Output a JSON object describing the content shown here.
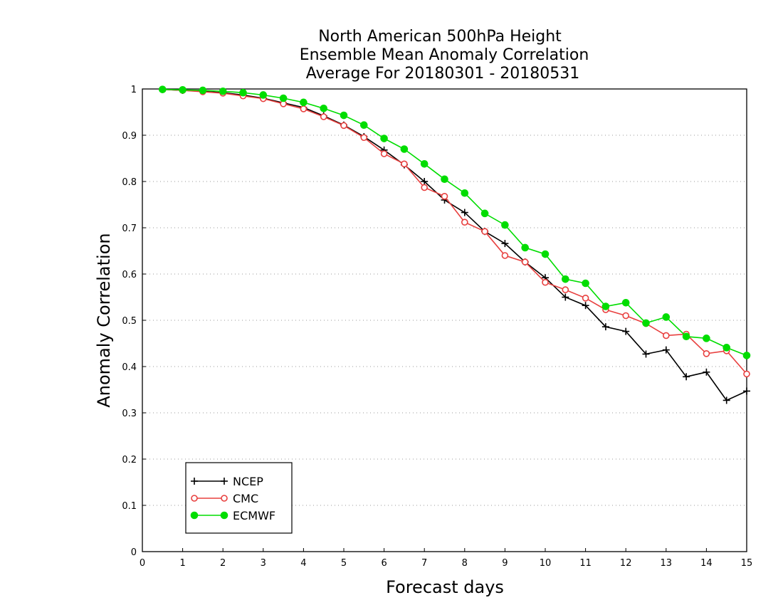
{
  "chart_data": {
    "type": "line",
    "title_lines": [
      "North American 500hPa Height",
      "Ensemble Mean Anomaly Correlation",
      "Average For 20180301 - 20180531"
    ],
    "xlabel": "Forecast days",
    "ylabel": "Anomaly Correlation",
    "xlim": [
      0,
      15
    ],
    "ylim": [
      0,
      1
    ],
    "x_ticks": [
      "0",
      "1",
      "2",
      "3",
      "4",
      "5",
      "6",
      "7",
      "8",
      "9",
      "10",
      "11",
      "12",
      "13",
      "14",
      "15"
    ],
    "y_ticks": [
      "0",
      "0.1",
      "0.2",
      "0.3",
      "0.4",
      "0.5",
      "0.6",
      "0.7",
      "0.8",
      "0.9",
      "1"
    ],
    "grid": "horizontal dotted",
    "legend_position": "bottom-left",
    "x": [
      0.5,
      1,
      1.5,
      2,
      2.5,
      3,
      3.5,
      4,
      4.5,
      5,
      5.5,
      6,
      6.5,
      7,
      7.5,
      8,
      8.5,
      9,
      9.5,
      10,
      10.5,
      11,
      11.5,
      12,
      12.5,
      13,
      13.5,
      14,
      14.5,
      15
    ],
    "series": [
      {
        "name": "NCEP",
        "color": "#000000",
        "marker": "plus",
        "values": [
          0.999,
          0.997,
          0.995,
          0.992,
          0.987,
          0.98,
          0.97,
          0.96,
          0.942,
          0.922,
          0.897,
          0.868,
          0.836,
          0.8,
          0.76,
          0.733,
          0.692,
          0.666,
          0.626,
          0.592,
          0.55,
          0.532,
          0.486,
          0.476,
          0.427,
          0.436,
          0.378,
          0.388,
          0.327,
          0.347
        ]
      },
      {
        "name": "CMC",
        "color": "#e8403f",
        "marker": "open-circle",
        "values": [
          0.999,
          0.997,
          0.994,
          0.991,
          0.985,
          0.979,
          0.968,
          0.957,
          0.94,
          0.921,
          0.895,
          0.86,
          0.838,
          0.787,
          0.768,
          0.712,
          0.692,
          0.64,
          0.626,
          0.582,
          0.566,
          0.548,
          0.523,
          0.51,
          0.493,
          0.467,
          0.47,
          0.428,
          0.434,
          0.384
        ]
      },
      {
        "name": "ECMWF",
        "color": "#00dd00",
        "marker": "filled-circle",
        "values": [
          0.999,
          0.998,
          0.997,
          0.995,
          0.992,
          0.987,
          0.98,
          0.971,
          0.958,
          0.943,
          0.922,
          0.893,
          0.87,
          0.838,
          0.805,
          0.775,
          0.731,
          0.706,
          0.657,
          0.643,
          0.589,
          0.58,
          0.53,
          0.538,
          0.494,
          0.507,
          0.465,
          0.461,
          0.441,
          0.424
        ]
      }
    ]
  }
}
